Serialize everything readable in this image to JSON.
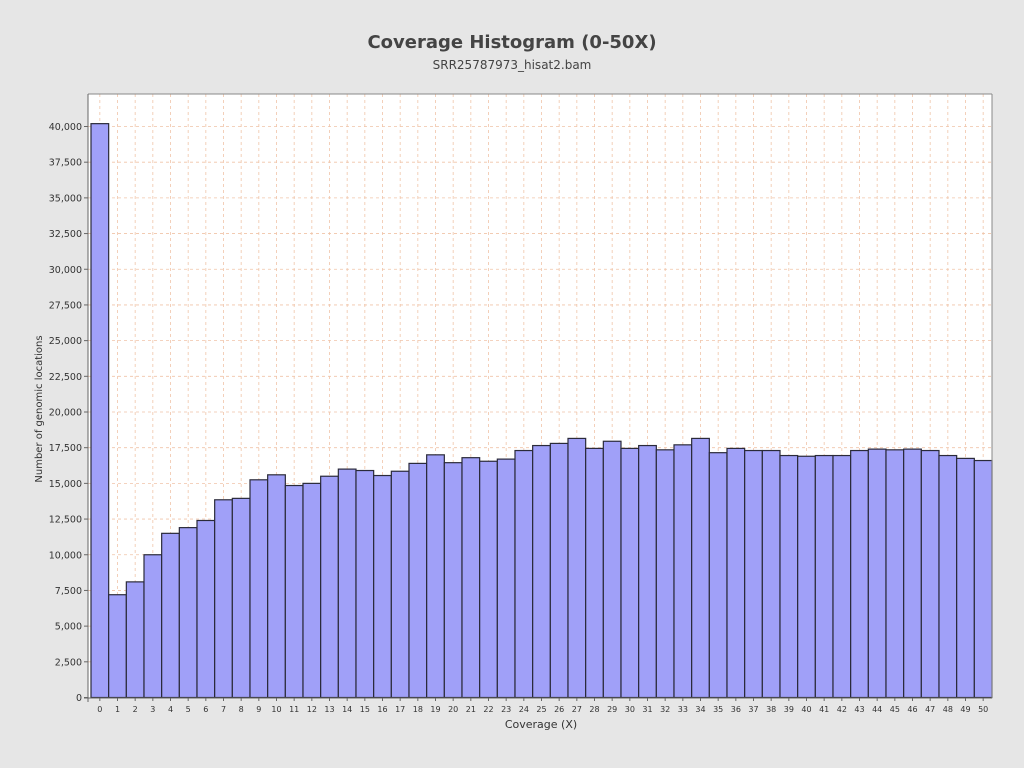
{
  "colors": {
    "background": "#e6e6e6",
    "plot_background": "#ffffff",
    "bar_fill": "#a0a0f8",
    "bar_stroke": "#2a2a3a",
    "grid": "#f0c4a8",
    "title": "#444444"
  },
  "chart_data": {
    "type": "bar",
    "title": "Coverage Histogram (0-50X)",
    "subtitle": "SRR25787973_hisat2.bam",
    "xlabel": "Coverage (X)",
    "ylabel": "Number of genomic locations",
    "ylim": [
      0,
      42250
    ],
    "yticks": [
      0,
      2500,
      5000,
      7500,
      10000,
      12500,
      15000,
      17500,
      20000,
      22500,
      25000,
      27500,
      30000,
      32500,
      35000,
      37500,
      40000
    ],
    "ytick_labels": [
      "0",
      "2,500",
      "5,000",
      "7,500",
      "10,000",
      "12,500",
      "15,000",
      "17,500",
      "20,000",
      "22,500",
      "25,000",
      "27,500",
      "30,000",
      "32,500",
      "35,000",
      "37,500",
      "40,000"
    ],
    "grid": true,
    "legend": "none",
    "categories": [
      "0",
      "1",
      "2",
      "3",
      "4",
      "5",
      "6",
      "7",
      "8",
      "9",
      "10",
      "11",
      "12",
      "13",
      "14",
      "15",
      "16",
      "17",
      "18",
      "19",
      "20",
      "21",
      "22",
      "23",
      "24",
      "25",
      "26",
      "27",
      "28",
      "29",
      "30",
      "31",
      "32",
      "33",
      "34",
      "35",
      "36",
      "37",
      "38",
      "39",
      "40",
      "41",
      "42",
      "43",
      "44",
      "45",
      "46",
      "47",
      "48",
      "49",
      "50"
    ],
    "values": [
      40200,
      7200,
      8100,
      10000,
      11500,
      11900,
      12400,
      13850,
      13950,
      15250,
      15600,
      14850,
      15000,
      15500,
      16000,
      15900,
      15550,
      15850,
      16400,
      17000,
      16450,
      16800,
      16550,
      16700,
      17300,
      17650,
      17800,
      18150,
      17450,
      17950,
      17450,
      17650,
      17350,
      17700,
      18150,
      17150,
      17450,
      17300,
      17300,
      16950,
      16900,
      16950,
      16950,
      17300,
      17400,
      17350,
      17400,
      17300,
      16950,
      16750,
      16600
    ]
  }
}
